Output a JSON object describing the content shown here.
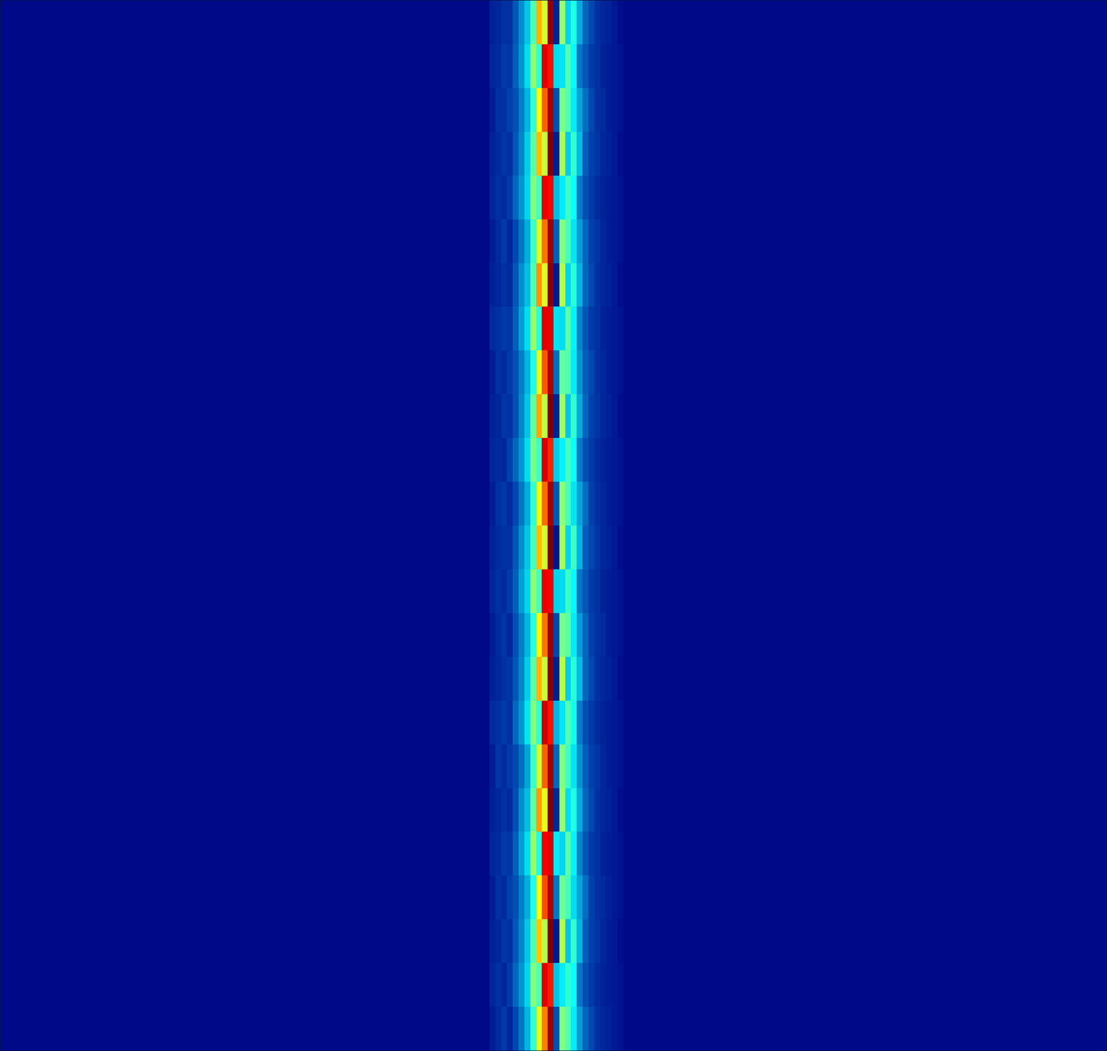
{
  "chart_data": {
    "type": "heatmap",
    "tick_labels": false,
    "grid": false,
    "xlim": [
      0,
      190
    ],
    "ylim": [
      0,
      24
    ],
    "zlim": [
      0,
      1
    ],
    "x_edges": [
      0,
      84,
      85,
      86,
      87,
      88,
      89,
      90,
      91,
      92,
      93,
      94,
      95,
      96,
      97,
      98,
      99,
      100,
      101,
      102,
      103,
      104,
      105,
      106,
      107,
      190
    ],
    "y_edges": [
      0,
      1,
      2,
      3,
      4,
      5,
      6,
      7,
      8,
      9,
      10,
      11,
      12,
      13,
      14,
      15,
      16,
      17,
      18,
      19,
      20,
      21,
      22,
      23,
      24
    ],
    "cells": [
      [
        0.02,
        0.06,
        0.09,
        0.12,
        0.08,
        0.14,
        0.2,
        0.28,
        0.42,
        0.6,
        0.75,
        0.97,
        0.15,
        0.5,
        0.45,
        0.35,
        0.25,
        0.18,
        0.14,
        0.1,
        0.08,
        0.07,
        0.05,
        0.04,
        0.02
      ],
      [
        0.02,
        0.08,
        0.1,
        0.08,
        0.12,
        0.18,
        0.24,
        0.32,
        0.5,
        0.45,
        0.9,
        0.85,
        0.3,
        0.35,
        0.42,
        0.38,
        0.2,
        0.15,
        0.12,
        0.09,
        0.07,
        0.06,
        0.05,
        0.04,
        0.02
      ],
      [
        0.02,
        0.07,
        0.08,
        0.11,
        0.1,
        0.16,
        0.22,
        0.3,
        0.45,
        0.68,
        0.55,
        1.0,
        0.05,
        0.55,
        0.3,
        0.42,
        0.28,
        0.17,
        0.13,
        0.11,
        0.08,
        0.06,
        0.05,
        0.03,
        0.02
      ],
      [
        0.02,
        0.06,
        0.1,
        0.09,
        0.13,
        0.15,
        0.21,
        0.27,
        0.4,
        0.62,
        0.8,
        0.95,
        0.2,
        0.48,
        0.44,
        0.33,
        0.26,
        0.19,
        0.13,
        0.1,
        0.09,
        0.07,
        0.05,
        0.04,
        0.02
      ],
      [
        0.02,
        0.08,
        0.09,
        0.12,
        0.11,
        0.17,
        0.25,
        0.33,
        0.52,
        0.4,
        0.88,
        0.9,
        0.35,
        0.32,
        0.46,
        0.36,
        0.22,
        0.16,
        0.12,
        0.1,
        0.07,
        0.06,
        0.05,
        0.04,
        0.02
      ],
      [
        0.02,
        0.07,
        0.08,
        0.1,
        0.09,
        0.15,
        0.23,
        0.29,
        0.47,
        0.72,
        0.6,
        1.0,
        0.08,
        0.52,
        0.33,
        0.4,
        0.27,
        0.18,
        0.14,
        0.1,
        0.08,
        0.07,
        0.05,
        0.03,
        0.02
      ],
      [
        0.02,
        0.06,
        0.11,
        0.09,
        0.12,
        0.14,
        0.19,
        0.26,
        0.43,
        0.58,
        0.78,
        0.96,
        0.18,
        0.5,
        0.43,
        0.34,
        0.24,
        0.17,
        0.13,
        0.11,
        0.08,
        0.06,
        0.05,
        0.04,
        0.02
      ],
      [
        0.02,
        0.09,
        0.1,
        0.12,
        0.1,
        0.18,
        0.24,
        0.34,
        0.5,
        0.42,
        0.92,
        0.86,
        0.28,
        0.34,
        0.45,
        0.39,
        0.21,
        0.15,
        0.12,
        0.09,
        0.07,
        0.06,
        0.05,
        0.04,
        0.02
      ],
      [
        0.02,
        0.07,
        0.08,
        0.1,
        0.11,
        0.16,
        0.22,
        0.31,
        0.46,
        0.7,
        0.57,
        0.99,
        0.06,
        0.56,
        0.31,
        0.41,
        0.29,
        0.18,
        0.14,
        0.1,
        0.08,
        0.07,
        0.05,
        0.03,
        0.02
      ],
      [
        0.02,
        0.06,
        0.09,
        0.11,
        0.08,
        0.15,
        0.21,
        0.28,
        0.41,
        0.63,
        0.76,
        0.97,
        0.14,
        0.49,
        0.46,
        0.35,
        0.25,
        0.18,
        0.13,
        0.1,
        0.09,
        0.06,
        0.05,
        0.04,
        0.02
      ],
      [
        0.02,
        0.08,
        0.1,
        0.09,
        0.12,
        0.17,
        0.25,
        0.32,
        0.51,
        0.44,
        0.89,
        0.88,
        0.32,
        0.33,
        0.43,
        0.37,
        0.2,
        0.16,
        0.12,
        0.1,
        0.07,
        0.06,
        0.05,
        0.04,
        0.02
      ],
      [
        0.02,
        0.07,
        0.09,
        0.1,
        0.1,
        0.16,
        0.23,
        0.3,
        0.44,
        0.69,
        0.58,
        1.0,
        0.04,
        0.54,
        0.32,
        0.43,
        0.28,
        0.17,
        0.14,
        0.11,
        0.08,
        0.07,
        0.05,
        0.03,
        0.02
      ],
      [
        0.02,
        0.06,
        0.1,
        0.12,
        0.09,
        0.14,
        0.2,
        0.27,
        0.42,
        0.61,
        0.77,
        0.96,
        0.16,
        0.51,
        0.44,
        0.34,
        0.26,
        0.19,
        0.13,
        0.1,
        0.08,
        0.06,
        0.05,
        0.04,
        0.02
      ],
      [
        0.02,
        0.08,
        0.09,
        0.08,
        0.13,
        0.18,
        0.24,
        0.33,
        0.49,
        0.43,
        0.91,
        0.84,
        0.31,
        0.36,
        0.44,
        0.38,
        0.21,
        0.15,
        0.12,
        0.09,
        0.07,
        0.06,
        0.05,
        0.04,
        0.02
      ],
      [
        0.02,
        0.07,
        0.08,
        0.11,
        0.1,
        0.15,
        0.22,
        0.3,
        0.47,
        0.71,
        0.56,
        1.0,
        0.07,
        0.53,
        0.3,
        0.42,
        0.27,
        0.18,
        0.13,
        0.11,
        0.08,
        0.07,
        0.05,
        0.03,
        0.02
      ],
      [
        0.02,
        0.06,
        0.1,
        0.09,
        0.12,
        0.15,
        0.21,
        0.28,
        0.4,
        0.6,
        0.79,
        0.95,
        0.19,
        0.47,
        0.45,
        0.35,
        0.24,
        0.17,
        0.14,
        0.1,
        0.08,
        0.06,
        0.05,
        0.04,
        0.02
      ],
      [
        0.02,
        0.09,
        0.1,
        0.12,
        0.11,
        0.17,
        0.25,
        0.33,
        0.52,
        0.41,
        0.9,
        0.89,
        0.34,
        0.33,
        0.46,
        0.36,
        0.22,
        0.16,
        0.12,
        0.1,
        0.07,
        0.06,
        0.05,
        0.04,
        0.02
      ],
      [
        0.02,
        0.07,
        0.08,
        0.1,
        0.09,
        0.16,
        0.23,
        0.29,
        0.45,
        0.73,
        0.59,
        0.99,
        0.05,
        0.55,
        0.32,
        0.41,
        0.28,
        0.18,
        0.14,
        0.1,
        0.08,
        0.07,
        0.05,
        0.03,
        0.02
      ],
      [
        0.02,
        0.06,
        0.09,
        0.12,
        0.08,
        0.14,
        0.2,
        0.27,
        0.43,
        0.59,
        0.76,
        0.97,
        0.17,
        0.5,
        0.44,
        0.34,
        0.25,
        0.18,
        0.13,
        0.11,
        0.08,
        0.06,
        0.05,
        0.04,
        0.02
      ],
      [
        0.02,
        0.08,
        0.1,
        0.09,
        0.12,
        0.18,
        0.24,
        0.32,
        0.5,
        0.44,
        0.89,
        0.87,
        0.29,
        0.35,
        0.43,
        0.38,
        0.21,
        0.15,
        0.12,
        0.09,
        0.07,
        0.06,
        0.05,
        0.04,
        0.02
      ],
      [
        0.02,
        0.07,
        0.09,
        0.11,
        0.1,
        0.16,
        0.22,
        0.31,
        0.46,
        0.69,
        0.57,
        1.0,
        0.06,
        0.54,
        0.31,
        0.42,
        0.29,
        0.17,
        0.13,
        0.11,
        0.08,
        0.07,
        0.05,
        0.03,
        0.02
      ],
      [
        0.02,
        0.06,
        0.1,
        0.1,
        0.13,
        0.15,
        0.21,
        0.28,
        0.42,
        0.62,
        0.78,
        0.96,
        0.15,
        0.49,
        0.45,
        0.35,
        0.26,
        0.19,
        0.14,
        0.1,
        0.09,
        0.06,
        0.05,
        0.04,
        0.02
      ],
      [
        0.02,
        0.08,
        0.09,
        0.12,
        0.11,
        0.17,
        0.24,
        0.33,
        0.51,
        0.42,
        0.9,
        0.86,
        0.33,
        0.34,
        0.45,
        0.37,
        0.2,
        0.16,
        0.12,
        0.1,
        0.07,
        0.06,
        0.05,
        0.04,
        0.02
      ],
      [
        0.02,
        0.07,
        0.08,
        0.1,
        0.1,
        0.16,
        0.23,
        0.3,
        0.45,
        0.7,
        0.58,
        0.98,
        0.07,
        0.52,
        0.32,
        0.4,
        0.27,
        0.18,
        0.14,
        0.1,
        0.08,
        0.07,
        0.05,
        0.03,
        0.02
      ]
    ]
  }
}
